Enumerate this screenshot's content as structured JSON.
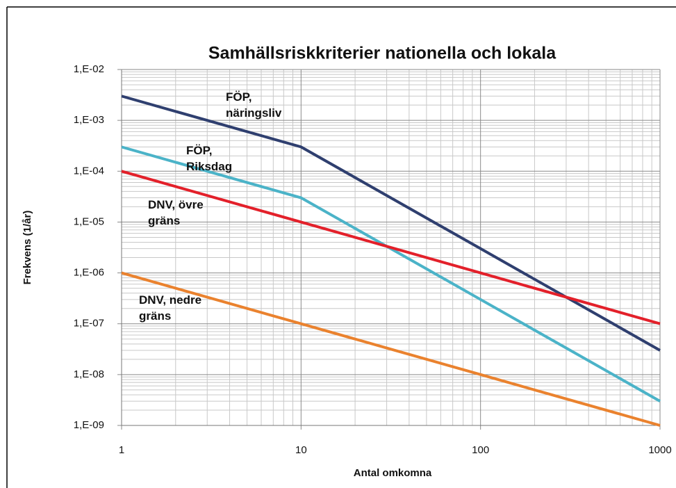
{
  "chart_data": {
    "type": "line",
    "title": "Samhällsriskkriterier nationella och lokala",
    "x_label": "Antal omkomna",
    "y_label": "Frekvens (1/år)",
    "x": [
      1,
      10,
      100,
      1000
    ],
    "series": [
      {
        "name": "FÖP, näringsliv",
        "color": "#2f3f6f",
        "values": [
          0.003,
          0.0003,
          3e-06,
          3e-08
        ]
      },
      {
        "name": "FÖP, Riksdag",
        "color": "#4bb3c8",
        "values": [
          0.0003,
          3e-05,
          3e-07,
          3e-09
        ]
      },
      {
        "name": "DNV, övre gräns",
        "color": "#e3202a",
        "values": [
          0.0001,
          1e-05,
          1e-06,
          1e-07
        ]
      },
      {
        "name": "DNV, nedre gräns",
        "color": "#ea822e",
        "values": [
          1e-06,
          1e-07,
          1e-08,
          1e-09
        ]
      }
    ],
    "xlim": [
      1,
      1000
    ],
    "xticks": [
      1,
      10,
      100,
      1000
    ],
    "ylim": [
      1e-09,
      0.01
    ],
    "yticks": [
      {
        "value": 0.01,
        "label": "1,E-02"
      },
      {
        "value": 0.001,
        "label": "1,E-03"
      },
      {
        "value": 0.0001,
        "label": "1,E-04"
      },
      {
        "value": 1e-05,
        "label": "1,E-05"
      },
      {
        "value": 1e-06,
        "label": "1,E-06"
      },
      {
        "value": 1e-07,
        "label": "1,E-07"
      },
      {
        "value": 1e-08,
        "label": "1,E-08"
      },
      {
        "value": 1e-09,
        "label": "1,E-09"
      }
    ],
    "xscale": "log",
    "yscale": "log",
    "grid": true
  }
}
